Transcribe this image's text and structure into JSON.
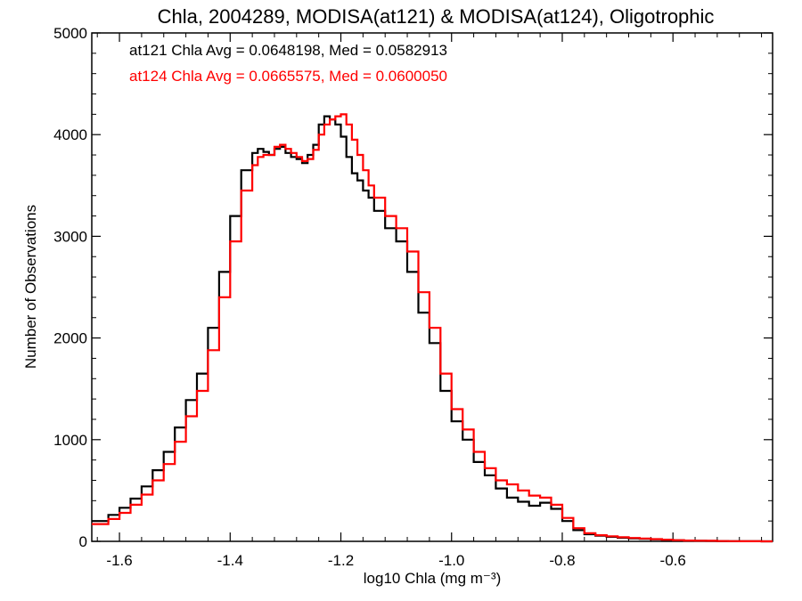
{
  "chart_data": {
    "type": "line",
    "title": "Chla, 2004289, MODISA(at121) & MODISA(at124), Oligotrophic",
    "xlabel": "log10 Chla (mg m⁻³)",
    "ylabel": "Number of Observations",
    "xlim": [
      -1.65,
      -0.42
    ],
    "ylim": [
      0,
      5000
    ],
    "xticks": [
      "-1.6",
      "-1.4",
      "-1.2",
      "-1.0",
      "-0.8",
      "-0.6"
    ],
    "yticks": [
      "0",
      "1000",
      "2000",
      "3000",
      "4000",
      "5000"
    ],
    "annotations": [
      {
        "text": "at121 Chla Avg = 0.0648198, Med = 0.0582913",
        "color": "#000000"
      },
      {
        "text": "at124 Chla Avg = 0.0665575, Med = 0.0600050",
        "color": "#ff0000"
      }
    ],
    "series": [
      {
        "color": "#000000",
        "x": [
          -1.65,
          -1.62,
          -1.6,
          -1.58,
          -1.56,
          -1.54,
          -1.52,
          -1.5,
          -1.48,
          -1.46,
          -1.44,
          -1.42,
          -1.4,
          -1.38,
          -1.36,
          -1.35,
          -1.34,
          -1.33,
          -1.32,
          -1.31,
          -1.3,
          -1.29,
          -1.28,
          -1.27,
          -1.26,
          -1.25,
          -1.24,
          -1.23,
          -1.22,
          -1.21,
          -1.2,
          -1.19,
          -1.18,
          -1.17,
          -1.16,
          -1.15,
          -1.14,
          -1.12,
          -1.1,
          -1.08,
          -1.06,
          -1.04,
          -1.02,
          -1.0,
          -0.98,
          -0.96,
          -0.94,
          -0.92,
          -0.9,
          -0.88,
          -0.86,
          -0.84,
          -0.82,
          -0.8,
          -0.78,
          -0.76,
          -0.74,
          -0.72,
          -0.7,
          -0.68,
          -0.66,
          -0.64,
          -0.62,
          -0.6,
          -0.58,
          -0.56,
          -0.54,
          -0.52,
          -0.5,
          -0.48,
          -0.46,
          -0.44,
          -0.42
        ],
        "y": [
          200,
          260,
          330,
          420,
          540,
          700,
          880,
          1120,
          1390,
          1650,
          2100,
          2650,
          3200,
          3650,
          3820,
          3860,
          3830,
          3800,
          3860,
          3880,
          3820,
          3780,
          3760,
          3720,
          3800,
          3900,
          4100,
          4180,
          4150,
          4100,
          3980,
          3780,
          3620,
          3550,
          3450,
          3380,
          3250,
          3080,
          2950,
          2650,
          2250,
          1950,
          1480,
          1180,
          1000,
          780,
          650,
          520,
          430,
          390,
          350,
          380,
          320,
          200,
          110,
          70,
          55,
          45,
          35,
          30,
          25,
          20,
          15,
          10,
          8,
          5,
          4,
          3,
          2,
          1,
          1,
          0,
          0
        ]
      },
      {
        "color": "#ff0000",
        "x": [
          -1.65,
          -1.62,
          -1.6,
          -1.58,
          -1.56,
          -1.54,
          -1.52,
          -1.5,
          -1.48,
          -1.46,
          -1.44,
          -1.42,
          -1.4,
          -1.38,
          -1.36,
          -1.35,
          -1.34,
          -1.33,
          -1.32,
          -1.31,
          -1.3,
          -1.29,
          -1.28,
          -1.27,
          -1.26,
          -1.25,
          -1.24,
          -1.23,
          -1.22,
          -1.21,
          -1.2,
          -1.19,
          -1.18,
          -1.17,
          -1.16,
          -1.15,
          -1.14,
          -1.12,
          -1.1,
          -1.08,
          -1.06,
          -1.04,
          -1.02,
          -1.0,
          -0.98,
          -0.96,
          -0.94,
          -0.92,
          -0.9,
          -0.88,
          -0.86,
          -0.84,
          -0.82,
          -0.8,
          -0.78,
          -0.76,
          -0.74,
          -0.72,
          -0.7,
          -0.68,
          -0.66,
          -0.64,
          -0.62,
          -0.6,
          -0.58,
          -0.56,
          -0.54,
          -0.52,
          -0.5,
          -0.48,
          -0.46,
          -0.44,
          -0.42
        ],
        "y": [
          170,
          220,
          280,
          360,
          460,
          600,
          760,
          980,
          1230,
          1480,
          1880,
          2400,
          2950,
          3450,
          3700,
          3780,
          3800,
          3800,
          3880,
          3900,
          3860,
          3820,
          3780,
          3740,
          3760,
          3850,
          4000,
          4100,
          4150,
          4180,
          4200,
          4100,
          3950,
          3800,
          3650,
          3500,
          3380,
          3200,
          3080,
          2850,
          2450,
          2100,
          1650,
          1300,
          1100,
          880,
          720,
          600,
          560,
          500,
          450,
          430,
          360,
          230,
          130,
          80,
          60,
          50,
          40,
          33,
          28,
          22,
          16,
          11,
          8,
          6,
          5,
          3,
          2,
          1,
          1,
          0,
          0
        ]
      }
    ]
  }
}
